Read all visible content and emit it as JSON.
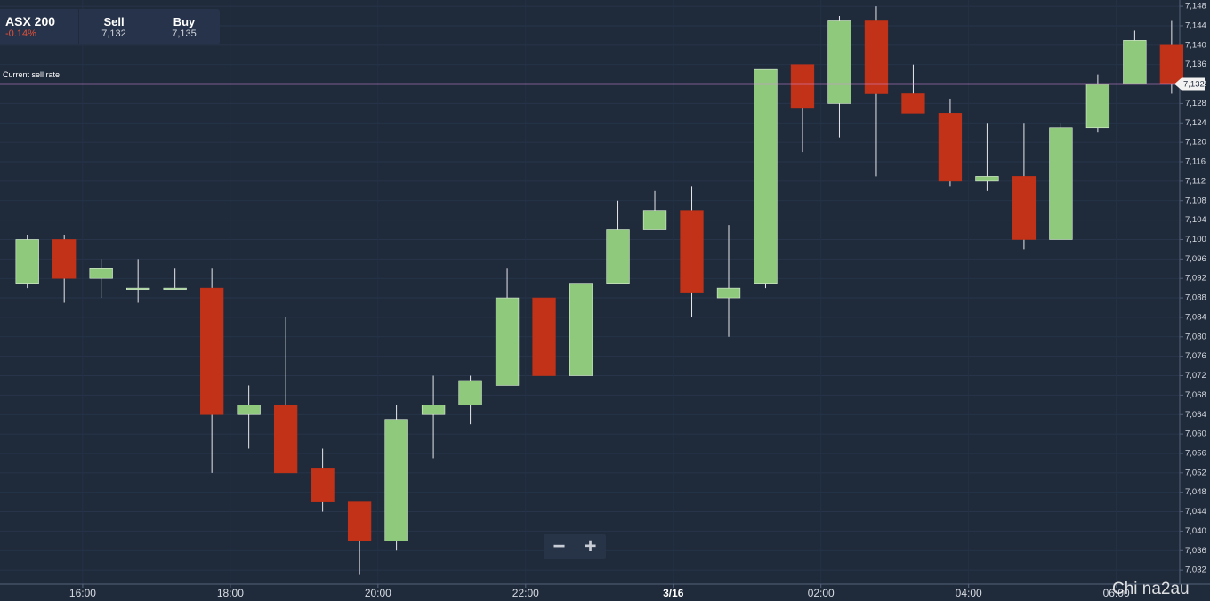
{
  "header": {
    "instrument": "ASX 200",
    "change": "-0.14%",
    "sell_label": "Sell",
    "sell": "7,132",
    "buy_label": "Buy",
    "buy": "7,135"
  },
  "chart_data": {
    "type": "candlestick",
    "x": [
      15.25,
      15.75,
      16.25,
      16.75,
      17.25,
      17.75,
      18.25,
      18.75,
      19.25,
      19.75,
      20.25,
      20.75,
      21.25,
      21.75,
      22.25,
      22.75,
      23.25,
      23.75,
      24.25,
      24.75,
      25.25,
      25.75,
      26.25,
      26.75,
      27.25,
      27.75,
      28.25,
      28.75,
      29.25,
      29.75,
      30.25,
      30.75
    ],
    "open": [
      7091,
      7100,
      7092,
      7090,
      7090,
      7090,
      7064,
      7066,
      7053,
      7046,
      7038,
      7064,
      7066,
      7070,
      7088,
      7072,
      7091,
      7102,
      7106,
      7088,
      7091,
      7136,
      7128,
      7145,
      7130,
      7126,
      7112,
      7113,
      7100,
      7123,
      7132,
      7140
    ],
    "high": [
      7101,
      7101,
      7096,
      7096,
      7094,
      7094,
      7070,
      7084,
      7057,
      7046,
      7066,
      7072,
      7072,
      7094,
      7088,
      7091,
      7108,
      7110,
      7111,
      7103,
      7135,
      7136,
      7146,
      7148,
      7136,
      7129,
      7124,
      7124,
      7124,
      7134,
      7143,
      7145
    ],
    "low": [
      7090,
      7087,
      7088,
      7087,
      7090,
      7052,
      7057,
      7052,
      7044,
      7031,
      7036,
      7055,
      7062,
      7070,
      7072,
      7072,
      7091,
      7102,
      7084,
      7080,
      7090,
      7118,
      7121,
      7113,
      7126,
      7111,
      7110,
      7098,
      7100,
      7122,
      7132,
      7130
    ],
    "close": [
      7100,
      7092,
      7094,
      7090,
      7090,
      7064,
      7066,
      7052,
      7046,
      7038,
      7063,
      7066,
      7071,
      7088,
      7072,
      7091,
      7102,
      7106,
      7089,
      7090,
      7135,
      7127,
      7145,
      7130,
      7126,
      7112,
      7113,
      7100,
      7123,
      7132,
      7141,
      7132
    ],
    "up_color": "#8ec97c",
    "down_color": "#c13218",
    "xlim": [
      14.88,
      30.86
    ],
    "xticks": [
      {
        "value": 16,
        "label": "16:00"
      },
      {
        "value": 18,
        "label": "18:00"
      },
      {
        "value": 20,
        "label": "20:00"
      },
      {
        "value": 22,
        "label": "22:00"
      },
      {
        "value": 24,
        "label": "3/16"
      },
      {
        "value": 26,
        "label": "02:00"
      },
      {
        "value": 28,
        "label": "04:00"
      },
      {
        "value": 30,
        "label": "06:00"
      }
    ],
    "ylim": [
      7029.1,
      7149.3
    ],
    "yticks": [
      {
        "value": 7032,
        "label": "7,032"
      },
      {
        "value": 7036,
        "label": "7,036"
      },
      {
        "value": 7040,
        "label": "7,040"
      },
      {
        "value": 7044,
        "label": "7,044"
      },
      {
        "value": 7048,
        "label": "7,048"
      },
      {
        "value": 7052,
        "label": "7,052"
      },
      {
        "value": 7056,
        "label": "7,056"
      },
      {
        "value": 7060,
        "label": "7,060"
      },
      {
        "value": 7064,
        "label": "7,064"
      },
      {
        "value": 7068,
        "label": "7,068"
      },
      {
        "value": 7072,
        "label": "7,072"
      },
      {
        "value": 7076,
        "label": "7,076"
      },
      {
        "value": 7080,
        "label": "7,080"
      },
      {
        "value": 7084,
        "label": "7,084"
      },
      {
        "value": 7088,
        "label": "7,088"
      },
      {
        "value": 7092,
        "label": "7,092"
      },
      {
        "value": 7096,
        "label": "7,096"
      },
      {
        "value": 7100,
        "label": "7,100"
      },
      {
        "value": 7104,
        "label": "7,104"
      },
      {
        "value": 7108,
        "label": "7,108"
      },
      {
        "value": 7112,
        "label": "7,112"
      },
      {
        "value": 7116,
        "label": "7,116"
      },
      {
        "value": 7120,
        "label": "7,120"
      },
      {
        "value": 7124,
        "label": "7,124"
      },
      {
        "value": 7128,
        "label": "7,128"
      },
      {
        "value": 7132,
        "label": "7,132"
      },
      {
        "value": 7136,
        "label": "7,136"
      },
      {
        "value": 7140,
        "label": "7,140"
      },
      {
        "value": 7144,
        "label": "7,144"
      },
      {
        "value": 7148,
        "label": "7,148"
      }
    ],
    "grid": true,
    "current_rate": {
      "label": "Current sell rate",
      "value": 7132,
      "value_label": "7,132",
      "color": "#d98ee0"
    },
    "watermark": "Chi na2au"
  }
}
